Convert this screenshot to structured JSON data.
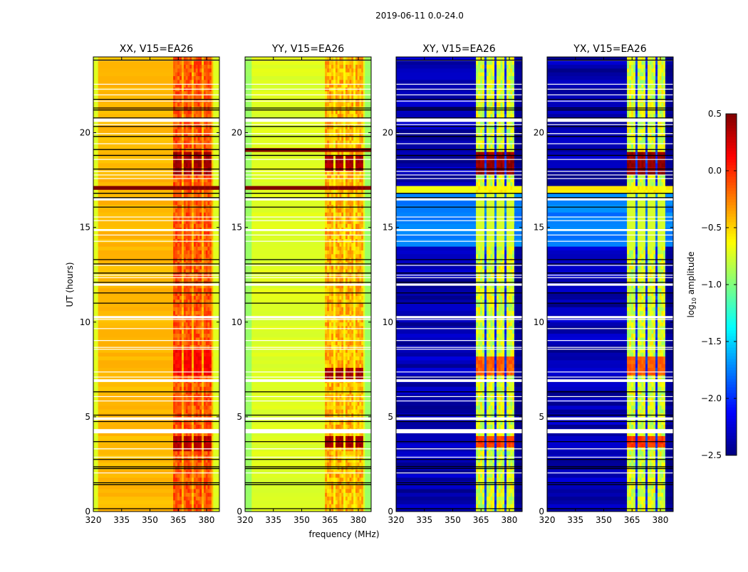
{
  "figure": {
    "title": "2019-06-11 0.0-24.0",
    "xlabel": "frequency (MHz)",
    "ylabel": "UT (hours)"
  },
  "colorbar": {
    "label_base": "log",
    "label_sub": "10",
    "label_rest": " amplitude",
    "range": [
      -2.5,
      0.5
    ],
    "ticks": [
      0.5,
      0.0,
      -0.5,
      -1.0,
      -1.5,
      -2.0,
      -2.5
    ],
    "tick_labels": [
      "0.5",
      "0.0",
      "−0.5",
      "−1.0",
      "−1.5",
      "−2.0",
      "−2.5"
    ],
    "colormap": "jet"
  },
  "chart_data": {
    "type": "heatmap",
    "title": "2019-06-11 0.0-24.0",
    "xlabel": "frequency (MHz)",
    "ylabel": "UT (hours)",
    "xlim": [
      320,
      386.8
    ],
    "ylim": [
      0,
      24
    ],
    "xticks": [
      320,
      335,
      350,
      365,
      380
    ],
    "xtick_labels": [
      "320",
      "335",
      "350",
      "365",
      "380"
    ],
    "yticks": [
      0,
      5,
      10,
      15,
      20
    ],
    "ytick_labels": [
      "0",
      "5",
      "10",
      "15",
      "20"
    ],
    "value_label": "log10 amplitude",
    "vmin": -2.5,
    "vmax": 0.5,
    "rfi_channels_mhz": [
      [
        362.3,
        366.8
      ],
      [
        367.9,
        372.1
      ],
      [
        373.2,
        377.4
      ],
      [
        378.5,
        382.6
      ]
    ],
    "flagged_rows_hours": [
      23.83,
      22.56,
      22.3,
      22.0,
      21.67,
      20.66,
      20.43,
      19.95,
      19.42,
      18.59,
      17.96,
      17.77,
      17.58,
      16.48,
      15.55,
      15.36,
      14.86,
      14.6,
      14.27,
      13.0,
      12.48,
      12.35,
      11.98,
      10.26,
      10.14,
      9.66,
      9.03,
      8.67,
      8.57,
      7.37,
      7.1,
      6.91,
      6.07,
      5.84,
      4.9,
      4.24,
      3.31,
      2.87,
      2.04
    ],
    "flagged_row_widths_hours": [
      0.03,
      0.04,
      0.04,
      0.04,
      0.04,
      0.18,
      0.04,
      0.05,
      0.04,
      0.04,
      0.04,
      0.04,
      0.04,
      0.12,
      0.04,
      0.04,
      0.1,
      0.04,
      0.04,
      0.04,
      0.04,
      0.04,
      0.12,
      0.12,
      0.04,
      0.04,
      0.04,
      0.04,
      0.04,
      0.04,
      0.04,
      0.14,
      0.04,
      0.04,
      0.14,
      0.22,
      0.05,
      0.04,
      0.04
    ],
    "scan_boundaries_hours": [
      23.83,
      21.76,
      21.3,
      21.2,
      20.78,
      20.33,
      19.8,
      19.11,
      18.8,
      18.08,
      16.8,
      16.57,
      16.07,
      13.3,
      13.07,
      12.59,
      12.1,
      11.54,
      11.0,
      6.32,
      5.09,
      4.75,
      3.69,
      2.75,
      2.36,
      2.27,
      1.52,
      1.42,
      0.15
    ],
    "panels": [
      {
        "title": "XX, V15=EA26",
        "base": -0.42,
        "noise": 0.08,
        "edge_level": -0.72,
        "edge_mhz": [
          322.5,
          383.5
        ],
        "rfi_level": -0.12,
        "rfi_noise": 0.3,
        "gap_level": -0.4,
        "bursts": [
          {
            "t": [
              3.3,
              4.1
            ],
            "value": 0.32,
            "full": false
          },
          {
            "t": [
              7.2,
              8.6
            ],
            "value": 0.12,
            "full": false
          },
          {
            "t": [
              17.8,
              18.95
            ],
            "value": 0.4,
            "full": false
          },
          {
            "t": [
              16.9,
              17.25
            ],
            "value": 0.5,
            "full": true
          }
        ]
      },
      {
        "title": "YY, V15=EA26",
        "base": -0.72,
        "noise": 0.06,
        "edge_level": -0.92,
        "edge_mhz": [
          323.5,
          383.5
        ],
        "rfi_level": -0.4,
        "rfi_noise": 0.35,
        "gap_level": -0.62,
        "bursts": [
          {
            "t": [
              3.4,
              4.1
            ],
            "value": 0.4,
            "full": false
          },
          {
            "t": [
              7.1,
              7.7
            ],
            "value": 0.4,
            "full": false
          },
          {
            "t": [
              18.0,
              18.8
            ],
            "value": 0.38,
            "full": false
          },
          {
            "t": [
              18.9,
              19.2
            ],
            "value": 0.5,
            "full": true
          },
          {
            "t": [
              16.9,
              17.2
            ],
            "value": 0.5,
            "full": true
          }
        ]
      },
      {
        "title": "XY, V15=EA26",
        "base": -2.35,
        "noise": 0.25,
        "edge_level": -2.45,
        "edge_mhz": [
          320.5,
          383.0
        ],
        "rfi_level": -0.75,
        "rfi_noise": 0.45,
        "gap_level": -2.0,
        "bursts": [
          {
            "t": [
              3.4,
              4.1
            ],
            "value": -0.05,
            "full": false
          },
          {
            "t": [
              7.2,
              8.3
            ],
            "value": -0.15,
            "full": false
          },
          {
            "t": [
              17.8,
              19.0
            ],
            "value": 0.45,
            "full": false
          },
          {
            "t": [
              14.0,
              16.7
            ],
            "value": -1.75,
            "full": true
          },
          {
            "t": [
              16.85,
              17.25
            ],
            "value": -0.6,
            "full": true
          }
        ]
      },
      {
        "title": "YX, V15=EA26",
        "base": -2.35,
        "noise": 0.25,
        "edge_level": -2.45,
        "edge_mhz": [
          320.5,
          383.0
        ],
        "rfi_level": -0.75,
        "rfi_noise": 0.45,
        "gap_level": -2.0,
        "bursts": [
          {
            "t": [
              3.4,
              4.1
            ],
            "value": -0.05,
            "full": false
          },
          {
            "t": [
              7.2,
              8.3
            ],
            "value": -0.15,
            "full": false
          },
          {
            "t": [
              17.8,
              19.0
            ],
            "value": 0.45,
            "full": false
          },
          {
            "t": [
              14.0,
              16.7
            ],
            "value": -1.75,
            "full": true
          },
          {
            "t": [
              16.85,
              17.25
            ],
            "value": -0.6,
            "full": true
          }
        ]
      }
    ]
  }
}
